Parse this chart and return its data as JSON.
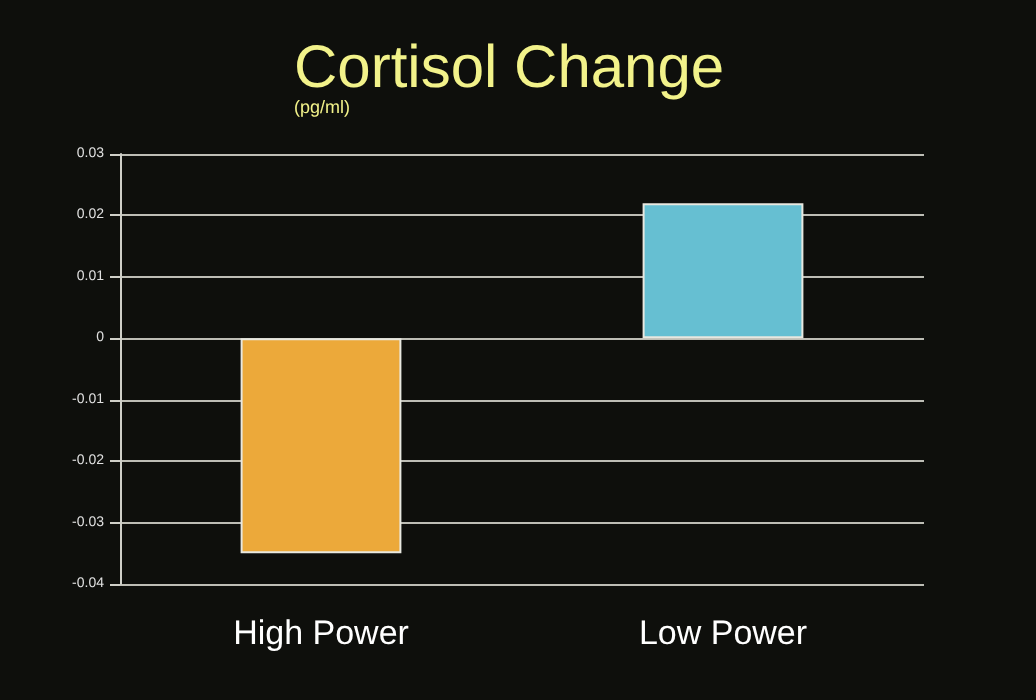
{
  "chart_data": {
    "type": "bar",
    "title": "Cortisol Change",
    "subtitle": "(pg/ml)",
    "categories": [
      "High Power",
      "Low Power"
    ],
    "values": [
      -0.035,
      0.022
    ],
    "colors": [
      "#eca93a",
      "#66bfd2"
    ],
    "ylim": [
      -0.04,
      0.03
    ],
    "yticks": [
      -0.04,
      -0.03,
      -0.02,
      -0.01,
      0,
      0.01,
      0.02,
      0.03
    ],
    "grid": "y"
  }
}
